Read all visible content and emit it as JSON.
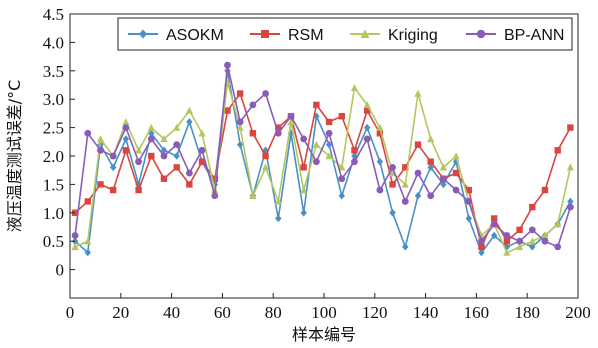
{
  "chart_data": {
    "type": "line",
    "xlabel": "样本编号",
    "ylabel": "液压温度测试误差/°C",
    "xlim": [
      0,
      200
    ],
    "ylim": [
      -0.5,
      4.5
    ],
    "xticks": [
      "0",
      "20",
      "40",
      "60",
      "80",
      "100",
      "120",
      "140",
      "160",
      "180",
      "200"
    ],
    "yticks": [
      "0",
      "0.5",
      "1.0",
      "1.5",
      "2.0",
      "2.5",
      "3.0",
      "3.5",
      "4.0",
      "4.5"
    ],
    "legend_position": "top",
    "grid": false,
    "x_step": 5,
    "series": [
      {
        "name": "ASOKM",
        "color": "#4a90c8",
        "marker": "diamond",
        "x": [
          2,
          7,
          12,
          17,
          22,
          27,
          32,
          37,
          42,
          47,
          52,
          57,
          62,
          67,
          72,
          77,
          82,
          87,
          92,
          97,
          102,
          107,
          112,
          117,
          122,
          127,
          132,
          137,
          142,
          147,
          152,
          157,
          162,
          167,
          172,
          177,
          182,
          187,
          192,
          197
        ],
        "values": [
          0.5,
          0.3,
          2.2,
          1.8,
          2.3,
          1.5,
          2.4,
          2.1,
          2.0,
          2.6,
          1.9,
          1.5,
          3.5,
          2.2,
          1.3,
          2.1,
          0.9,
          2.4,
          1.0,
          2.7,
          2.2,
          1.3,
          2.0,
          2.5,
          1.9,
          1.0,
          0.4,
          1.3,
          1.8,
          1.5,
          1.9,
          0.9,
          0.3,
          0.6,
          0.4,
          0.5,
          0.4,
          0.6,
          0.8,
          1.2
        ]
      },
      {
        "name": "RSM",
        "color": "#d9463f",
        "marker": "square",
        "x": [
          2,
          7,
          12,
          17,
          22,
          27,
          32,
          37,
          42,
          47,
          52,
          57,
          62,
          67,
          72,
          77,
          82,
          87,
          92,
          97,
          102,
          107,
          112,
          117,
          122,
          127,
          132,
          137,
          142,
          147,
          152,
          157,
          162,
          167,
          172,
          177,
          182,
          187,
          192,
          197
        ],
        "values": [
          1.0,
          1.2,
          1.5,
          1.4,
          2.1,
          1.4,
          2.0,
          1.6,
          1.8,
          1.5,
          1.9,
          1.6,
          2.8,
          3.1,
          2.4,
          2.0,
          2.5,
          2.7,
          1.8,
          2.9,
          2.6,
          2.7,
          2.1,
          2.8,
          2.4,
          1.5,
          1.8,
          2.2,
          1.9,
          1.6,
          1.7,
          1.4,
          0.4,
          0.9,
          0.5,
          0.7,
          1.1,
          1.4,
          2.1,
          2.5
        ]
      },
      {
        "name": "Kriging",
        "color": "#b2c85f",
        "marker": "triangle",
        "x": [
          2,
          7,
          12,
          17,
          22,
          27,
          32,
          37,
          42,
          47,
          52,
          57,
          62,
          67,
          72,
          77,
          82,
          87,
          92,
          97,
          102,
          107,
          112,
          117,
          122,
          127,
          132,
          137,
          142,
          147,
          152,
          157,
          162,
          167,
          172,
          177,
          182,
          187,
          192,
          197
        ],
        "values": [
          0.4,
          0.5,
          2.3,
          2.0,
          2.6,
          2.1,
          2.5,
          2.3,
          2.5,
          2.8,
          2.4,
          1.4,
          3.3,
          2.5,
          1.3,
          1.8,
          1.2,
          2.6,
          1.4,
          2.2,
          2.0,
          1.8,
          3.2,
          2.9,
          2.5,
          1.7,
          1.5,
          3.1,
          2.3,
          1.8,
          2.0,
          1.2,
          0.6,
          0.8,
          0.3,
          0.4,
          0.5,
          0.6,
          0.8,
          1.8
        ]
      },
      {
        "name": "BP-ANN",
        "color": "#8a5cb8",
        "marker": "circle",
        "x": [
          2,
          7,
          12,
          17,
          22,
          27,
          32,
          37,
          42,
          47,
          52,
          57,
          62,
          67,
          72,
          77,
          82,
          87,
          92,
          97,
          102,
          107,
          112,
          117,
          122,
          127,
          132,
          137,
          142,
          147,
          152,
          157,
          162,
          167,
          172,
          177,
          182,
          187,
          192,
          197
        ],
        "values": [
          0.6,
          2.4,
          2.1,
          2.0,
          2.5,
          1.9,
          2.3,
          2.0,
          2.2,
          1.7,
          2.1,
          1.3,
          3.6,
          2.6,
          2.9,
          3.1,
          2.4,
          2.7,
          2.3,
          1.9,
          2.4,
          1.6,
          1.9,
          2.3,
          1.4,
          1.8,
          1.2,
          1.7,
          1.3,
          1.6,
          1.4,
          1.2,
          0.5,
          0.8,
          0.6,
          0.5,
          0.7,
          0.5,
          0.4,
          1.1
        ]
      }
    ]
  }
}
